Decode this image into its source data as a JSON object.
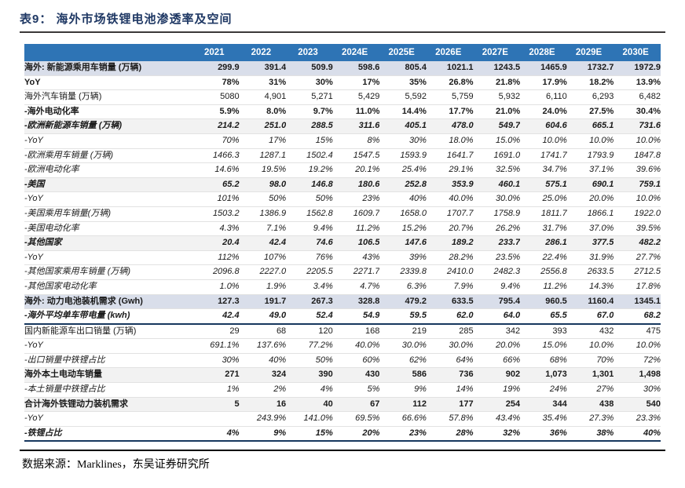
{
  "page": {
    "title": "表9：  海外市场铁锂电池渗透率及空间",
    "source_note": "数据来源：Marklines，东吴证券研究所"
  },
  "colors": {
    "title_text": "#1F3864",
    "title_rule": "#3b3838",
    "header_bg": "#2E74B5",
    "header_text": "#FFFFFF",
    "row_blue_bg": "#D9DEEA",
    "row_gray_bg": "#F2F2F2",
    "section_divider": "#17375E",
    "grid_line": "#E2E2E2"
  },
  "chart_data": {
    "type": "table",
    "title": "海外市场铁锂电池渗透率及空间",
    "columns": [
      "2021",
      "2022",
      "2023",
      "2024E",
      "2025E",
      "2026E",
      "2027E",
      "2028E",
      "2029E",
      "2030E"
    ],
    "rows": [
      {
        "label": "海外: 新能源乘用车销量 (万辆)",
        "style": "b",
        "bg": "blue",
        "values": [
          "299.9",
          "391.4",
          "509.9",
          "598.6",
          "805.4",
          "1021.1",
          "1243.5",
          "1465.9",
          "1732.7",
          "1972.9"
        ]
      },
      {
        "label": "YoY",
        "style": "b",
        "bg": "",
        "values": [
          "78%",
          "31%",
          "30%",
          "17%",
          "35%",
          "26.8%",
          "21.8%",
          "17.9%",
          "18.2%",
          "13.9%"
        ]
      },
      {
        "label": "海外汽车销量 (万辆)",
        "style": "n",
        "bg": "",
        "values": [
          "5080",
          "4,901",
          "5,271",
          "5,429",
          "5,592",
          "5,759",
          "5,932",
          "6,110",
          "6,293",
          "6,482"
        ]
      },
      {
        "label": "-海外电动化率",
        "style": "b",
        "bg": "",
        "values": [
          "5.9%",
          "8.0%",
          "9.7%",
          "11.0%",
          "14.4%",
          "17.7%",
          "21.0%",
          "24.0%",
          "27.5%",
          "30.4%"
        ]
      },
      {
        "label": "-欧洲新能源车销量 (万辆)",
        "style": "bi",
        "bg": "gray",
        "values": [
          "214.2",
          "251.0",
          "288.5",
          "311.6",
          "405.1",
          "478.0",
          "549.7",
          "604.6",
          "665.1",
          "731.6"
        ]
      },
      {
        "label": "-YoY",
        "style": "i",
        "bg": "",
        "values": [
          "70%",
          "17%",
          "15%",
          "8%",
          "30%",
          "18.0%",
          "15.0%",
          "10.0%",
          "10.0%",
          "10.0%"
        ]
      },
      {
        "label": "-欧洲乘用车销量 (万辆)",
        "style": "i",
        "bg": "",
        "values": [
          "1466.3",
          "1287.1",
          "1502.4",
          "1547.5",
          "1593.9",
          "1641.7",
          "1691.0",
          "1741.7",
          "1793.9",
          "1847.8"
        ]
      },
      {
        "label": "-欧洲电动化率",
        "style": "i",
        "bg": "",
        "values": [
          "14.6%",
          "19.5%",
          "19.2%",
          "20.1%",
          "25.4%",
          "29.1%",
          "32.5%",
          "34.7%",
          "37.1%",
          "39.6%"
        ]
      },
      {
        "label": "-美国",
        "style": "bi",
        "bg": "gray",
        "values": [
          "65.2",
          "98.0",
          "146.8",
          "180.6",
          "252.8",
          "353.9",
          "460.1",
          "575.1",
          "690.1",
          "759.1"
        ]
      },
      {
        "label": "-YoY",
        "style": "i",
        "bg": "",
        "values": [
          "101%",
          "50%",
          "50%",
          "23%",
          "40%",
          "40.0%",
          "30.0%",
          "25.0%",
          "20.0%",
          "10.0%"
        ]
      },
      {
        "label": "-美国乘用车销量(万辆)",
        "style": "i",
        "bg": "",
        "values": [
          "1503.2",
          "1386.9",
          "1562.8",
          "1609.7",
          "1658.0",
          "1707.7",
          "1758.9",
          "1811.7",
          "1866.1",
          "1922.0"
        ]
      },
      {
        "label": "-美国电动化率",
        "style": "i",
        "bg": "",
        "values": [
          "4.3%",
          "7.1%",
          "9.4%",
          "11.2%",
          "15.2%",
          "20.7%",
          "26.2%",
          "31.7%",
          "37.0%",
          "39.5%"
        ]
      },
      {
        "label": "-其他国家",
        "style": "bi",
        "bg": "gray",
        "values": [
          "20.4",
          "42.4",
          "74.6",
          "106.5",
          "147.6",
          "189.2",
          "233.7",
          "286.1",
          "377.5",
          "482.2"
        ]
      },
      {
        "label": "-YoY",
        "style": "i",
        "bg": "",
        "values": [
          "112%",
          "107%",
          "76%",
          "43%",
          "39%",
          "28.2%",
          "23.5%",
          "22.4%",
          "31.9%",
          "27.7%"
        ]
      },
      {
        "label": "-其他国家乘用车销量 (万辆)",
        "style": "i",
        "bg": "",
        "values": [
          "2096.8",
          "2227.0",
          "2205.5",
          "2271.7",
          "2339.8",
          "2410.0",
          "2482.3",
          "2556.8",
          "2633.5",
          "2712.5"
        ]
      },
      {
        "label": "-其他国家电动化率",
        "style": "i",
        "bg": "",
        "values": [
          "1.0%",
          "1.9%",
          "3.4%",
          "4.7%",
          "6.3%",
          "7.9%",
          "9.4%",
          "11.2%",
          "14.3%",
          "17.8%"
        ]
      },
      {
        "label": "海外: 动力电池装机需求 (Gwh)",
        "style": "b",
        "bg": "blue",
        "values": [
          "127.3",
          "191.7",
          "267.3",
          "328.8",
          "479.2",
          "633.5",
          "795.4",
          "960.5",
          "1160.4",
          "1345.1"
        ]
      },
      {
        "label": "-海外平均单车带电量 (kwh)",
        "style": "bi",
        "bg": "",
        "divider": true,
        "values": [
          "42.4",
          "49.0",
          "52.4",
          "54.9",
          "59.5",
          "62.0",
          "64.0",
          "65.5",
          "67.0",
          "68.2"
        ]
      },
      {
        "label": "国内新能源车出口销量 (万辆)",
        "style": "n",
        "bg": "",
        "values": [
          "29",
          "68",
          "120",
          "168",
          "219",
          "285",
          "342",
          "393",
          "432",
          "475"
        ]
      },
      {
        "label": "-YoY",
        "style": "i",
        "bg": "",
        "values": [
          "691.1%",
          "137.6%",
          "77.2%",
          "40.0%",
          "30.0%",
          "30.0%",
          "20.0%",
          "15.0%",
          "10.0%",
          "10.0%"
        ]
      },
      {
        "label": "-出口销量中铁锂占比",
        "style": "i",
        "bg": "",
        "values": [
          "30%",
          "40%",
          "50%",
          "60%",
          "62%",
          "64%",
          "66%",
          "68%",
          "70%",
          "72%"
        ]
      },
      {
        "label": "海外本土电动车销量",
        "style": "b",
        "bg": "gray",
        "values": [
          "271",
          "324",
          "390",
          "430",
          "586",
          "736",
          "902",
          "1,073",
          "1,301",
          "1,498"
        ]
      },
      {
        "label": "-本土销量中铁锂占比",
        "style": "i",
        "bg": "",
        "values": [
          "1%",
          "2%",
          "4%",
          "5%",
          "9%",
          "14%",
          "19%",
          "24%",
          "27%",
          "30%"
        ]
      },
      {
        "label": "合计海外铁锂动力装机需求",
        "style": "b",
        "bg": "gray",
        "values": [
          "5",
          "16",
          "40",
          "67",
          "112",
          "177",
          "254",
          "344",
          "438",
          "540"
        ]
      },
      {
        "label": "-YoY",
        "style": "i",
        "bg": "",
        "values": [
          "",
          "243.9%",
          "141.0%",
          "69.5%",
          "66.6%",
          "57.8%",
          "43.4%",
          "35.4%",
          "27.3%",
          "23.3%"
        ]
      },
      {
        "label": "-铁锂占比",
        "style": "bi",
        "bg": "",
        "last": true,
        "values": [
          "4%",
          "9%",
          "15%",
          "20%",
          "23%",
          "28%",
          "32%",
          "36%",
          "38%",
          "40%"
        ]
      }
    ]
  }
}
